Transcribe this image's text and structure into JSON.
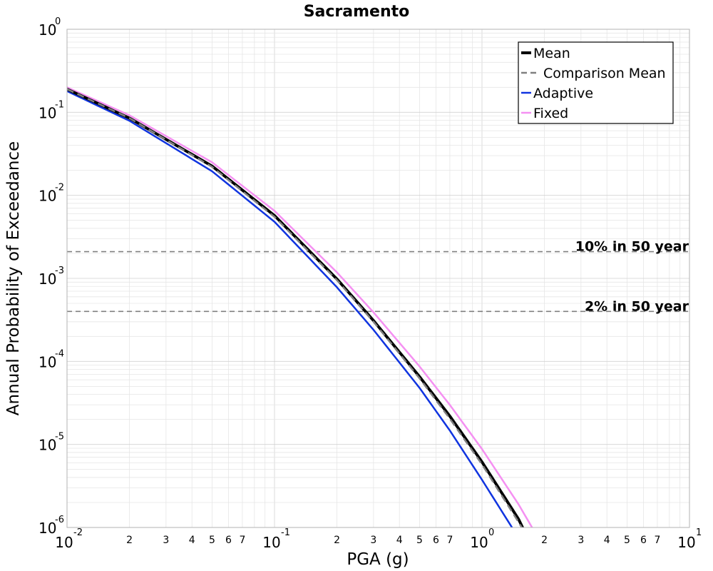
{
  "chart_data": {
    "type": "line",
    "title": "Sacramento",
    "xlabel": "PGA (g)",
    "ylabel": "Annual Probability of Exceedance",
    "xscale": "log",
    "yscale": "log",
    "xlim": [
      0.01,
      10
    ],
    "ylim": [
      1e-06,
      1
    ],
    "grid": true,
    "legend_position": "top-right",
    "x_major_ticks": [
      {
        "value": 0.01,
        "base": "10",
        "exp": "-2"
      },
      {
        "value": 0.1,
        "base": "10",
        "exp": "-1"
      },
      {
        "value": 1,
        "base": "10",
        "exp": "0"
      },
      {
        "value": 10,
        "base": "10",
        "exp": "1"
      }
    ],
    "x_minor_tick_labels": [
      "2",
      "3",
      "4",
      "5",
      "6",
      "7"
    ],
    "y_major_ticks": [
      {
        "value": 1,
        "base": "10",
        "exp": "0"
      },
      {
        "value": 0.1,
        "base": "10",
        "exp": "-1"
      },
      {
        "value": 0.01,
        "base": "10",
        "exp": "-2"
      },
      {
        "value": 0.001,
        "base": "10",
        "exp": "-3"
      },
      {
        "value": 0.0001,
        "base": "10",
        "exp": "-4"
      },
      {
        "value": 1e-05,
        "base": "10",
        "exp": "-5"
      },
      {
        "value": 1e-06,
        "base": "10",
        "exp": "-6"
      }
    ],
    "series": [
      {
        "name": "Mean",
        "color": "#000000",
        "style": "solid",
        "width": 4,
        "x": [
          0.01,
          0.02,
          0.05,
          0.1,
          0.2,
          0.3,
          0.5,
          0.7,
          1.0,
          1.5,
          1.7
        ],
        "y": [
          0.19,
          0.085,
          0.0225,
          0.0057,
          0.00098,
          0.00031,
          6.55e-05,
          2.19e-05,
          6.15e-06,
          1.26e-06,
          6.6e-07
        ]
      },
      {
        "name": "Comparison Mean",
        "color": "#808080",
        "style": "dashed",
        "width": 2.5,
        "x": [
          0.01,
          0.02,
          0.05,
          0.1,
          0.2,
          0.3,
          0.5,
          0.7,
          1.0,
          1.5,
          1.75
        ],
        "y": [
          0.19,
          0.085,
          0.022,
          0.0055,
          0.00095,
          0.0003,
          6.25e-05,
          2.04e-05,
          5.75e-06,
          1.16e-06,
          6.1e-07
        ]
      },
      {
        "name": "Adaptive",
        "color": "#1034e0",
        "style": "solid",
        "width": 2.5,
        "x": [
          0.01,
          0.02,
          0.05,
          0.1,
          0.2,
          0.3,
          0.5,
          0.7,
          1.0,
          1.5,
          1.6
        ],
        "y": [
          0.18,
          0.079,
          0.0195,
          0.0048,
          0.00078,
          0.00024,
          4.8e-05,
          1.47e-05,
          3.75e-06,
          7.5e-07,
          6e-07
        ]
      },
      {
        "name": "Fixed",
        "color": "#f590f2",
        "style": "solid",
        "width": 2.5,
        "x": [
          0.01,
          0.02,
          0.05,
          0.1,
          0.2,
          0.3,
          0.5,
          0.7,
          1.0,
          1.5,
          1.95
        ],
        "y": [
          0.2,
          0.092,
          0.025,
          0.0065,
          0.00118,
          0.00039,
          8.7e-05,
          2.99e-05,
          8.8e-06,
          1.9e-06,
          6.2e-07
        ]
      }
    ],
    "reference_lines": [
      {
        "label": "10% in 50 year",
        "y": 0.0021,
        "color": "#808080",
        "style": "dashed"
      },
      {
        "label": "2% in 50 year",
        "y": 0.0004,
        "color": "#808080",
        "style": "dashed"
      }
    ]
  }
}
